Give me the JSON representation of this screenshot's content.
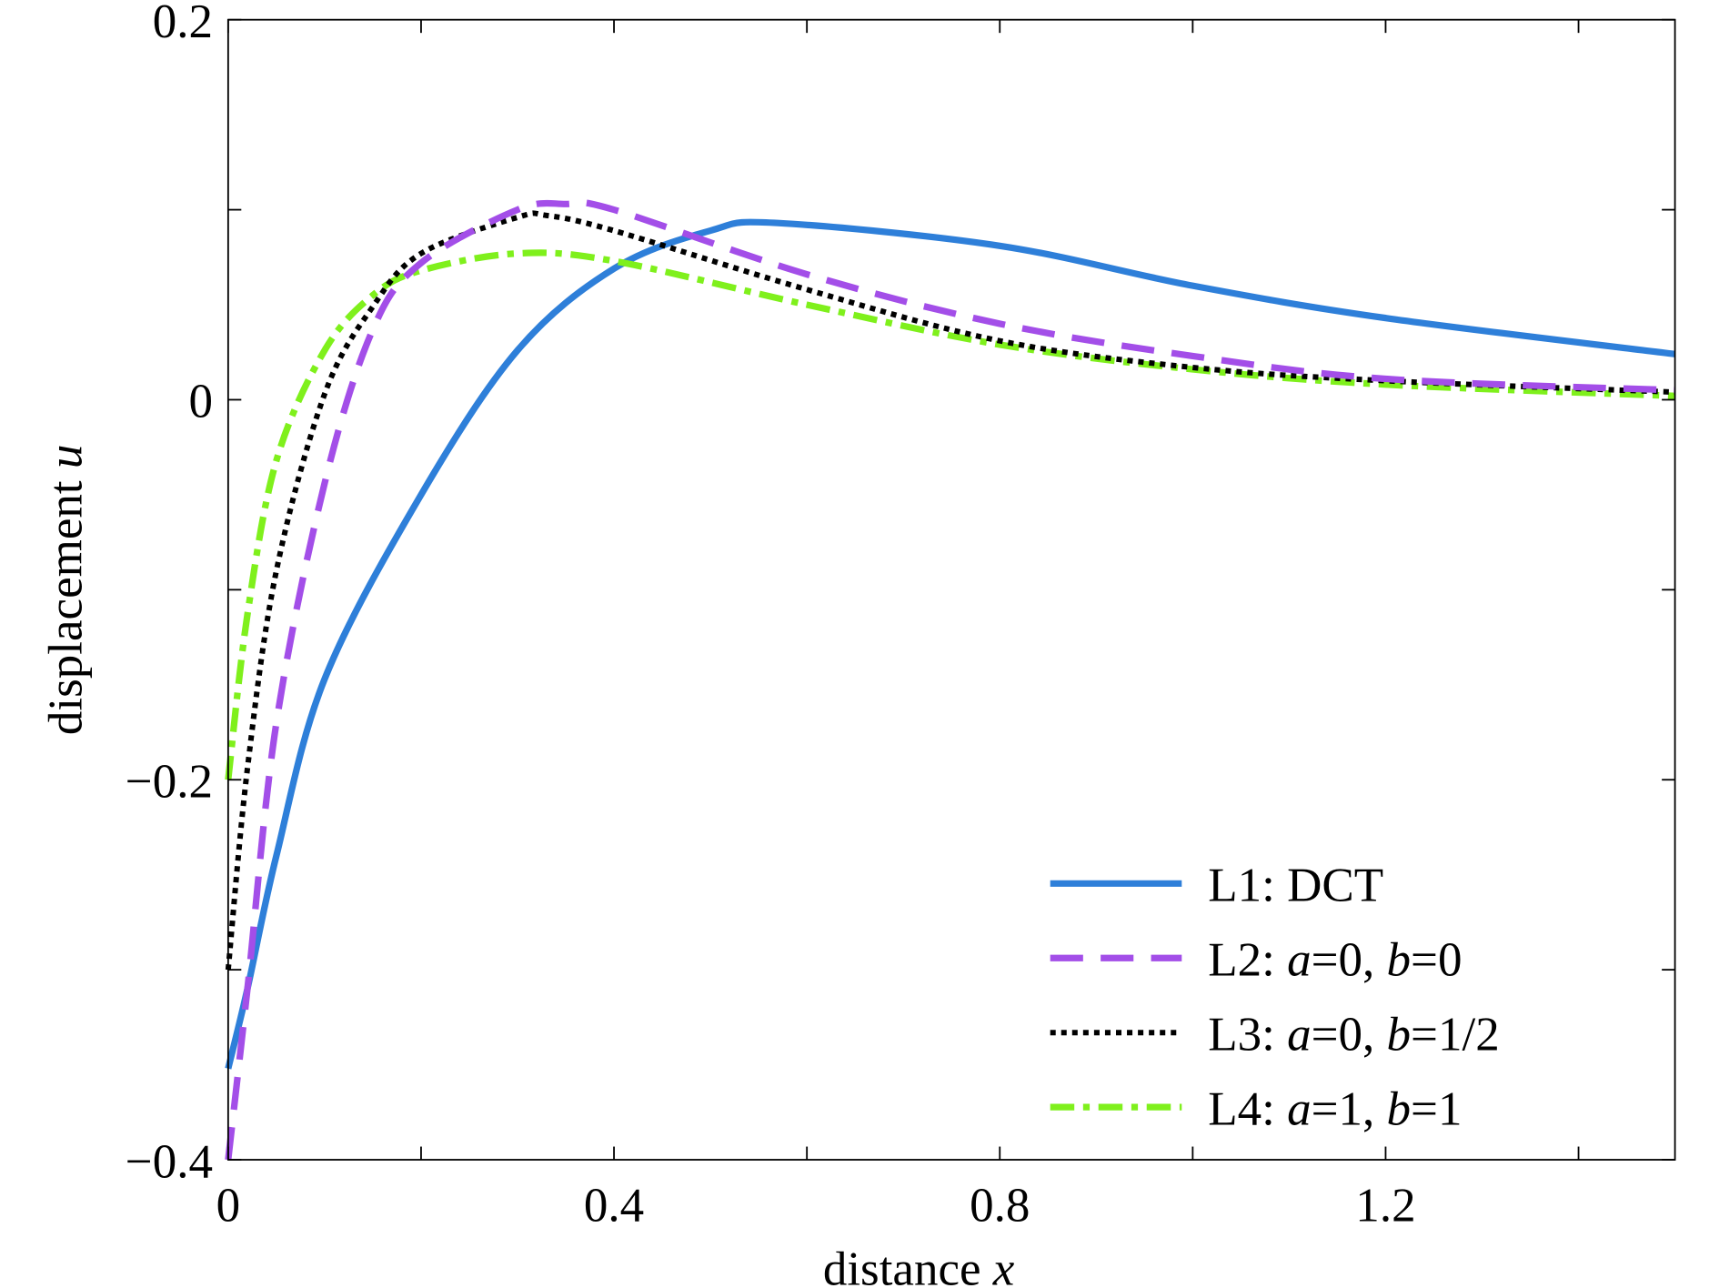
{
  "chart_data": {
    "type": "line",
    "title": "",
    "xlabel": "distance",
    "xlabel_var": "x",
    "ylabel": "displacement",
    "ylabel_var": "u",
    "xlim": [
      0,
      1.5
    ],
    "ylim": [
      -0.4,
      0.2
    ],
    "xticks": [
      0,
      0.4,
      0.8,
      1.2
    ],
    "xtick_labels": [
      "0",
      "0.4",
      "0.8",
      "1.2"
    ],
    "xminor": [
      0.2,
      0.6,
      1.0,
      1.4
    ],
    "yticks": [
      0.2,
      0,
      -0.2,
      -0.4
    ],
    "ytick_labels": [
      "0.2",
      "0",
      "−0.2",
      "−0.4"
    ],
    "yminor": [
      0.1,
      -0.1,
      -0.3
    ],
    "grid": false,
    "legend_position": "bottom-right",
    "series": [
      {
        "name": "L1: DCT",
        "label_parts": [
          "L1: DCT"
        ],
        "color": "#2e7fd9",
        "style": "solid",
        "x": [
          0,
          0.02,
          0.05,
          0.1,
          0.2,
          0.3,
          0.4,
          0.5,
          0.57,
          0.8,
          1.0,
          1.2,
          1.5
        ],
        "y": [
          -0.352,
          -0.31,
          -0.24,
          -0.147,
          -0.05,
          0.026,
          0.069,
          0.089,
          0.093,
          0.081,
          0.06,
          0.043,
          0.024
        ]
      },
      {
        "name": "L2: a=0, b=0",
        "label_parts": [
          "L2: ",
          "a",
          "=0, ",
          "b",
          "=0"
        ],
        "color": "#a34ee8",
        "style": "dashed",
        "x": [
          0,
          0.02,
          0.05,
          0.1,
          0.15,
          0.2,
          0.3,
          0.35,
          0.4,
          0.6,
          0.8,
          1.0,
          1.2,
          1.5
        ],
        "y": [
          -0.4,
          -0.31,
          -0.17,
          -0.044,
          0.037,
          0.072,
          0.1,
          0.103,
          0.1,
          0.066,
          0.04,
          0.023,
          0.011,
          0.005
        ]
      },
      {
        "name": "L3: a=0, b=1/2",
        "label_parts": [
          "L3: ",
          "a",
          "=0, ",
          "b",
          "=1/2"
        ],
        "color": "#000000",
        "style": "dotted",
        "x": [
          0,
          0.02,
          0.05,
          0.1,
          0.15,
          0.2,
          0.3,
          0.33,
          0.4,
          0.6,
          0.8,
          1.0,
          1.2,
          1.5
        ],
        "y": [
          -0.3,
          -0.194,
          -0.09,
          0.003,
          0.049,
          0.077,
          0.096,
          0.097,
          0.089,
          0.058,
          0.031,
          0.017,
          0.01,
          0.004
        ]
      },
      {
        "name": "L4: a=1, b=1",
        "label_parts": [
          "L4: ",
          "a",
          "=1, ",
          "b",
          "=1"
        ],
        "color": "#7ff01c",
        "style": "dashdot",
        "x": [
          0,
          0.02,
          0.05,
          0.1,
          0.15,
          0.2,
          0.3,
          0.4,
          0.6,
          0.8,
          1.0,
          1.2,
          1.5
        ],
        "y": [
          -0.2,
          -0.113,
          -0.032,
          0.026,
          0.055,
          0.068,
          0.077,
          0.073,
          0.05,
          0.029,
          0.016,
          0.008,
          0.002
        ]
      }
    ]
  }
}
